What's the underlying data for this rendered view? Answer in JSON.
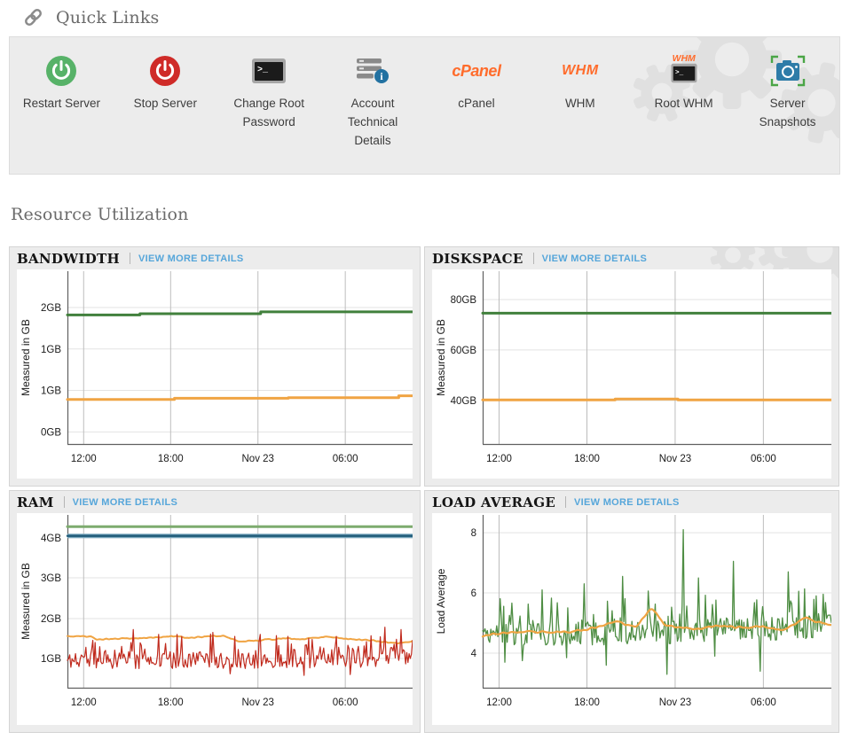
{
  "quick_links": {
    "title": "Quick Links",
    "items": [
      {
        "label": "Restart Server",
        "icon": "power-green-icon"
      },
      {
        "label": "Stop Server",
        "icon": "power-red-icon"
      },
      {
        "label": "Change Root Password",
        "icon": "terminal-icon"
      },
      {
        "label": "Account Technical Details",
        "icon": "server-info-icon"
      },
      {
        "label": "cPanel",
        "icon": "cpanel-logo",
        "logo_text": "cPanel"
      },
      {
        "label": "WHM",
        "icon": "whm-logo",
        "logo_text": "WHM"
      },
      {
        "label": "Root WHM",
        "icon": "whm-terminal-icon",
        "logo_text": "WHM"
      },
      {
        "label": "Server Snapshots",
        "icon": "camera-icon"
      }
    ]
  },
  "section": {
    "title": "Resource Utilization"
  },
  "colors": {
    "accent_orange_logo": "#ff6c2c",
    "link_blue": "#56a6da",
    "line_green_dark": "#41803c",
    "line_green_mid": "#4e8d43",
    "line_green_light": "#7dab6e",
    "line_orange": "#f0a443",
    "line_blue": "#1e5a78",
    "line_red": "#c02a1d",
    "panel_gray": "#ececec",
    "icon_green": "#57b268",
    "icon_red": "#cf2b28",
    "icon_blue_camera": "#2e7ca8"
  },
  "chart_data": [
    {
      "id": "bandwidth",
      "type": "line",
      "title": "BANDWIDTH",
      "link": "VIEW MORE DETAILS",
      "ylabel": "Measured in GB",
      "x_ticks": [
        {
          "label": "12:00",
          "f": 0.047
        },
        {
          "label": "18:00",
          "f": 0.299
        },
        {
          "label": "Nov 23",
          "f": 0.552
        },
        {
          "label": "06:00",
          "f": 0.805
        }
      ],
      "y_ticks": [
        {
          "label": "2GB",
          "f": 0.21
        },
        {
          "label": "1GB",
          "f": 0.45
        },
        {
          "label": "1GB",
          "f": 0.69
        },
        {
          "label": "0GB",
          "f": 0.93
        }
      ],
      "scale": {
        "v1": 2,
        "f1": 0.21,
        "v2": 0,
        "f2": 0.93
      },
      "series": [
        {
          "name": "green",
          "color": "#41803c",
          "width": 3,
          "type": "steps",
          "points": [
            [
              0,
              1.88
            ],
            [
              0.21,
              1.88
            ],
            [
              0.21,
              1.9
            ],
            [
              0.56,
              1.9
            ],
            [
              0.56,
              1.93
            ],
            [
              1,
              1.93
            ]
          ]
        },
        {
          "name": "orange",
          "color": "#f0a443",
          "width": 3,
          "type": "steps",
          "points": [
            [
              0,
              0.52
            ],
            [
              0.31,
              0.52
            ],
            [
              0.31,
              0.54
            ],
            [
              0.64,
              0.54
            ],
            [
              0.64,
              0.55
            ],
            [
              0.96,
              0.55
            ],
            [
              0.96,
              0.58
            ],
            [
              1,
              0.58
            ]
          ]
        }
      ]
    },
    {
      "id": "diskspace",
      "type": "line",
      "title": "DISKSPACE",
      "link": "VIEW MORE DETAILS",
      "ylabel": "Measured in GB",
      "x_ticks": [
        {
          "label": "12:00",
          "f": 0.047
        },
        {
          "label": "18:00",
          "f": 0.299
        },
        {
          "label": "Nov 23",
          "f": 0.552
        },
        {
          "label": "06:00",
          "f": 0.805
        }
      ],
      "y_ticks": [
        {
          "label": "80GB",
          "f": 0.164
        },
        {
          "label": "60GB",
          "f": 0.456
        },
        {
          "label": "40GB",
          "f": 0.749
        }
      ],
      "scale": {
        "v1": 80,
        "f1": 0.164,
        "v2": 40,
        "f2": 0.749
      },
      "series": [
        {
          "name": "green",
          "color": "#41803c",
          "width": 3,
          "type": "steps",
          "points": [
            [
              0,
              74.6
            ],
            [
              1,
              74.6
            ]
          ]
        },
        {
          "name": "orange",
          "color": "#f0a443",
          "width": 3,
          "type": "steps",
          "points": [
            [
              0,
              40.3
            ],
            [
              0.38,
              40.3
            ],
            [
              0.38,
              40.6
            ],
            [
              0.56,
              40.6
            ],
            [
              0.56,
              40.3
            ],
            [
              1,
              40.3
            ]
          ]
        }
      ]
    },
    {
      "id": "ram",
      "type": "line",
      "title": "RAM",
      "link": "VIEW MORE DETAILS",
      "ylabel": "Measured in GB",
      "x_ticks": [
        {
          "label": "12:00",
          "f": 0.047
        },
        {
          "label": "18:00",
          "f": 0.299
        },
        {
          "label": "Nov 23",
          "f": 0.552
        },
        {
          "label": "06:00",
          "f": 0.805
        }
      ],
      "y_ticks": [
        {
          "label": "4GB",
          "f": 0.133
        },
        {
          "label": "3GB",
          "f": 0.364
        },
        {
          "label": "2GB",
          "f": 0.6
        },
        {
          "label": "1GB",
          "f": 0.831
        }
      ],
      "scale": {
        "v1": 4,
        "f1": 0.133,
        "v2": 1,
        "f2": 0.831
      },
      "series": [
        {
          "name": "green-flat",
          "color": "#7dab6e",
          "width": 3,
          "type": "steps",
          "points": [
            [
              0,
              4.28
            ],
            [
              1,
              4.28
            ]
          ]
        },
        {
          "name": "blue-flat",
          "color": "#1e5a78",
          "width": 2.4,
          "type": "steps",
          "halo": {
            "color": "#7aa7bd",
            "width": 5
          },
          "points": [
            [
              0,
              4.05
            ],
            [
              1,
              4.05
            ]
          ]
        },
        {
          "name": "orange-wavy",
          "color": "#f0a443",
          "width": 2,
          "type": "noisy",
          "seed": 5,
          "points": 240,
          "noise": 0.025,
          "smooth": 1,
          "anchors": [
            [
              0,
              1.55
            ],
            [
              0.07,
              1.55
            ],
            [
              0.08,
              1.48
            ],
            [
              0.2,
              1.5
            ],
            [
              0.3,
              1.55
            ],
            [
              0.35,
              1.52
            ],
            [
              0.45,
              1.57
            ],
            [
              0.5,
              1.42
            ],
            [
              0.55,
              1.45
            ],
            [
              0.62,
              1.5
            ],
            [
              0.68,
              1.48
            ],
            [
              0.75,
              1.55
            ],
            [
              0.8,
              1.5
            ],
            [
              0.88,
              1.45
            ],
            [
              0.95,
              1.38
            ],
            [
              1,
              1.42
            ]
          ]
        },
        {
          "name": "red-noisy",
          "color": "#c02a1d",
          "width": 1.2,
          "type": "noisy",
          "seed": 11,
          "points": 300,
          "noise": 0.2,
          "spike_prob": 0.28,
          "spike_amp": 0.55,
          "anchors": [
            [
              0,
              0.95
            ],
            [
              0.8,
              0.95
            ],
            [
              1,
              1.05
            ]
          ],
          "spikes": [
            [
              0.075,
              1.45
            ],
            [
              0.19,
              1.72
            ],
            [
              0.265,
              1.6
            ],
            [
              0.33,
              1.55
            ],
            [
              0.42,
              1.65
            ],
            [
              0.47,
              0.62
            ],
            [
              0.485,
              1.55
            ],
            [
              0.56,
              1.6
            ],
            [
              0.64,
              1.55
            ],
            [
              0.685,
              0.58
            ],
            [
              0.7,
              1.5
            ],
            [
              0.78,
              1.55
            ],
            [
              0.82,
              0.6
            ],
            [
              0.92,
              1.78
            ],
            [
              0.965,
              1.72
            ]
          ]
        }
      ]
    },
    {
      "id": "load-average",
      "type": "line",
      "title": "LOAD AVERAGE",
      "link": "VIEW MORE DETAILS",
      "ylabel": "Load Average",
      "x_ticks": [
        {
          "label": "12:00",
          "f": 0.047
        },
        {
          "label": "18:00",
          "f": 0.299
        },
        {
          "label": "Nov 23",
          "f": 0.552
        },
        {
          "label": "06:00",
          "f": 0.805
        }
      ],
      "y_ticks": [
        {
          "label": "8",
          "f": 0.103
        },
        {
          "label": "6",
          "f": 0.451
        },
        {
          "label": "4",
          "f": 0.8
        }
      ],
      "scale": {
        "v1": 8,
        "f1": 0.103,
        "v2": 4,
        "f2": 0.8
      },
      "series": [
        {
          "name": "green-noisy",
          "color": "#4e8d43",
          "width": 1.3,
          "type": "noisy",
          "seed": 17,
          "points": 300,
          "noise": 0.4,
          "spike_prob": 0.18,
          "spike_amp": 1.0,
          "anchors": [
            [
              0,
              4.6
            ],
            [
              0.5,
              4.7
            ],
            [
              1,
              4.9
            ]
          ],
          "spikes": [
            [
              0.065,
              3.7
            ],
            [
              0.115,
              3.75
            ],
            [
              0.17,
              6.1
            ],
            [
              0.24,
              3.85
            ],
            [
              0.29,
              6.3
            ],
            [
              0.355,
              3.6
            ],
            [
              0.4,
              6.55
            ],
            [
              0.53,
              3.3
            ],
            [
              0.575,
              8.1
            ],
            [
              0.62,
              6.5
            ],
            [
              0.665,
              3.9
            ],
            [
              0.72,
              7.05
            ],
            [
              0.795,
              3.4
            ],
            [
              0.875,
              6.7
            ],
            [
              0.955,
              5.9
            ]
          ]
        },
        {
          "name": "orange-smooth",
          "color": "#f0a443",
          "width": 2.2,
          "type": "noisy",
          "seed": 23,
          "points": 240,
          "noise": 0.06,
          "smooth": 2,
          "anchors": [
            [
              0,
              4.6
            ],
            [
              0.1,
              4.7
            ],
            [
              0.2,
              4.68
            ],
            [
              0.3,
              4.78
            ],
            [
              0.38,
              5.05
            ],
            [
              0.44,
              4.85
            ],
            [
              0.485,
              5.55
            ],
            [
              0.52,
              4.95
            ],
            [
              0.6,
              4.8
            ],
            [
              0.68,
              4.9
            ],
            [
              0.75,
              4.85
            ],
            [
              0.8,
              4.9
            ],
            [
              0.86,
              4.75
            ],
            [
              0.93,
              5.2
            ],
            [
              0.97,
              5.0
            ],
            [
              1,
              4.9
            ]
          ]
        }
      ]
    }
  ]
}
